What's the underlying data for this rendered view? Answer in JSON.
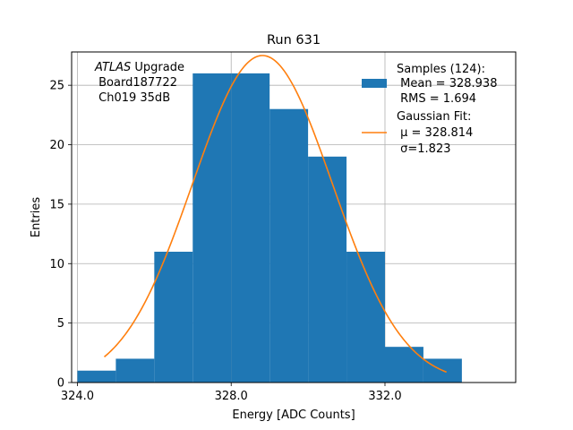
{
  "colors": {
    "bar": "#1f77b4",
    "fit": "#ff7f0e",
    "grid": "#b0b0b0",
    "axis": "#000000",
    "background": "#ffffff"
  },
  "chart_data": {
    "type": "bar",
    "title": "Run 631",
    "xlabel": "Energy [ADC Counts]",
    "ylabel": "Entries",
    "xlim": [
      323.85,
      335.4
    ],
    "ylim": [
      0,
      27.8
    ],
    "grid": true,
    "x_ticks": [
      324.0,
      328.0,
      332.0
    ],
    "x_tick_labels": [
      "324.0",
      "328.0",
      "332.0"
    ],
    "y_ticks": [
      0,
      5,
      10,
      15,
      20,
      25
    ],
    "y_tick_labels": [
      "0",
      "5",
      "10",
      "15",
      "20",
      "25"
    ],
    "bin_edges": [
      324.0,
      325.0,
      326.0,
      327.0,
      328.0,
      329.0,
      330.0,
      331.0,
      332.0,
      333.0,
      334.0
    ],
    "values": [
      1,
      2,
      11,
      26,
      26,
      23,
      19,
      11,
      3,
      2
    ],
    "fit": {
      "name": "Gaussian Fit",
      "mu": 328.814,
      "sigma": 1.823,
      "amplitude": 27.5,
      "x_range": [
        324.7,
        333.6
      ]
    },
    "annotation": {
      "italic": "ATLAS",
      "rest": " Upgrade",
      "line2": " Board187722",
      "line3": " Ch019 35dB"
    },
    "legend": {
      "placement": "top-right",
      "entries": [
        {
          "series": "bar",
          "lines": [
            "Samples (124):",
            " Mean = 328.938",
            " RMS = 1.694"
          ]
        },
        {
          "series": "fit",
          "lines": [
            "Gaussian Fit:",
            " μ = 328.814",
            " σ=1.823"
          ]
        }
      ]
    }
  }
}
